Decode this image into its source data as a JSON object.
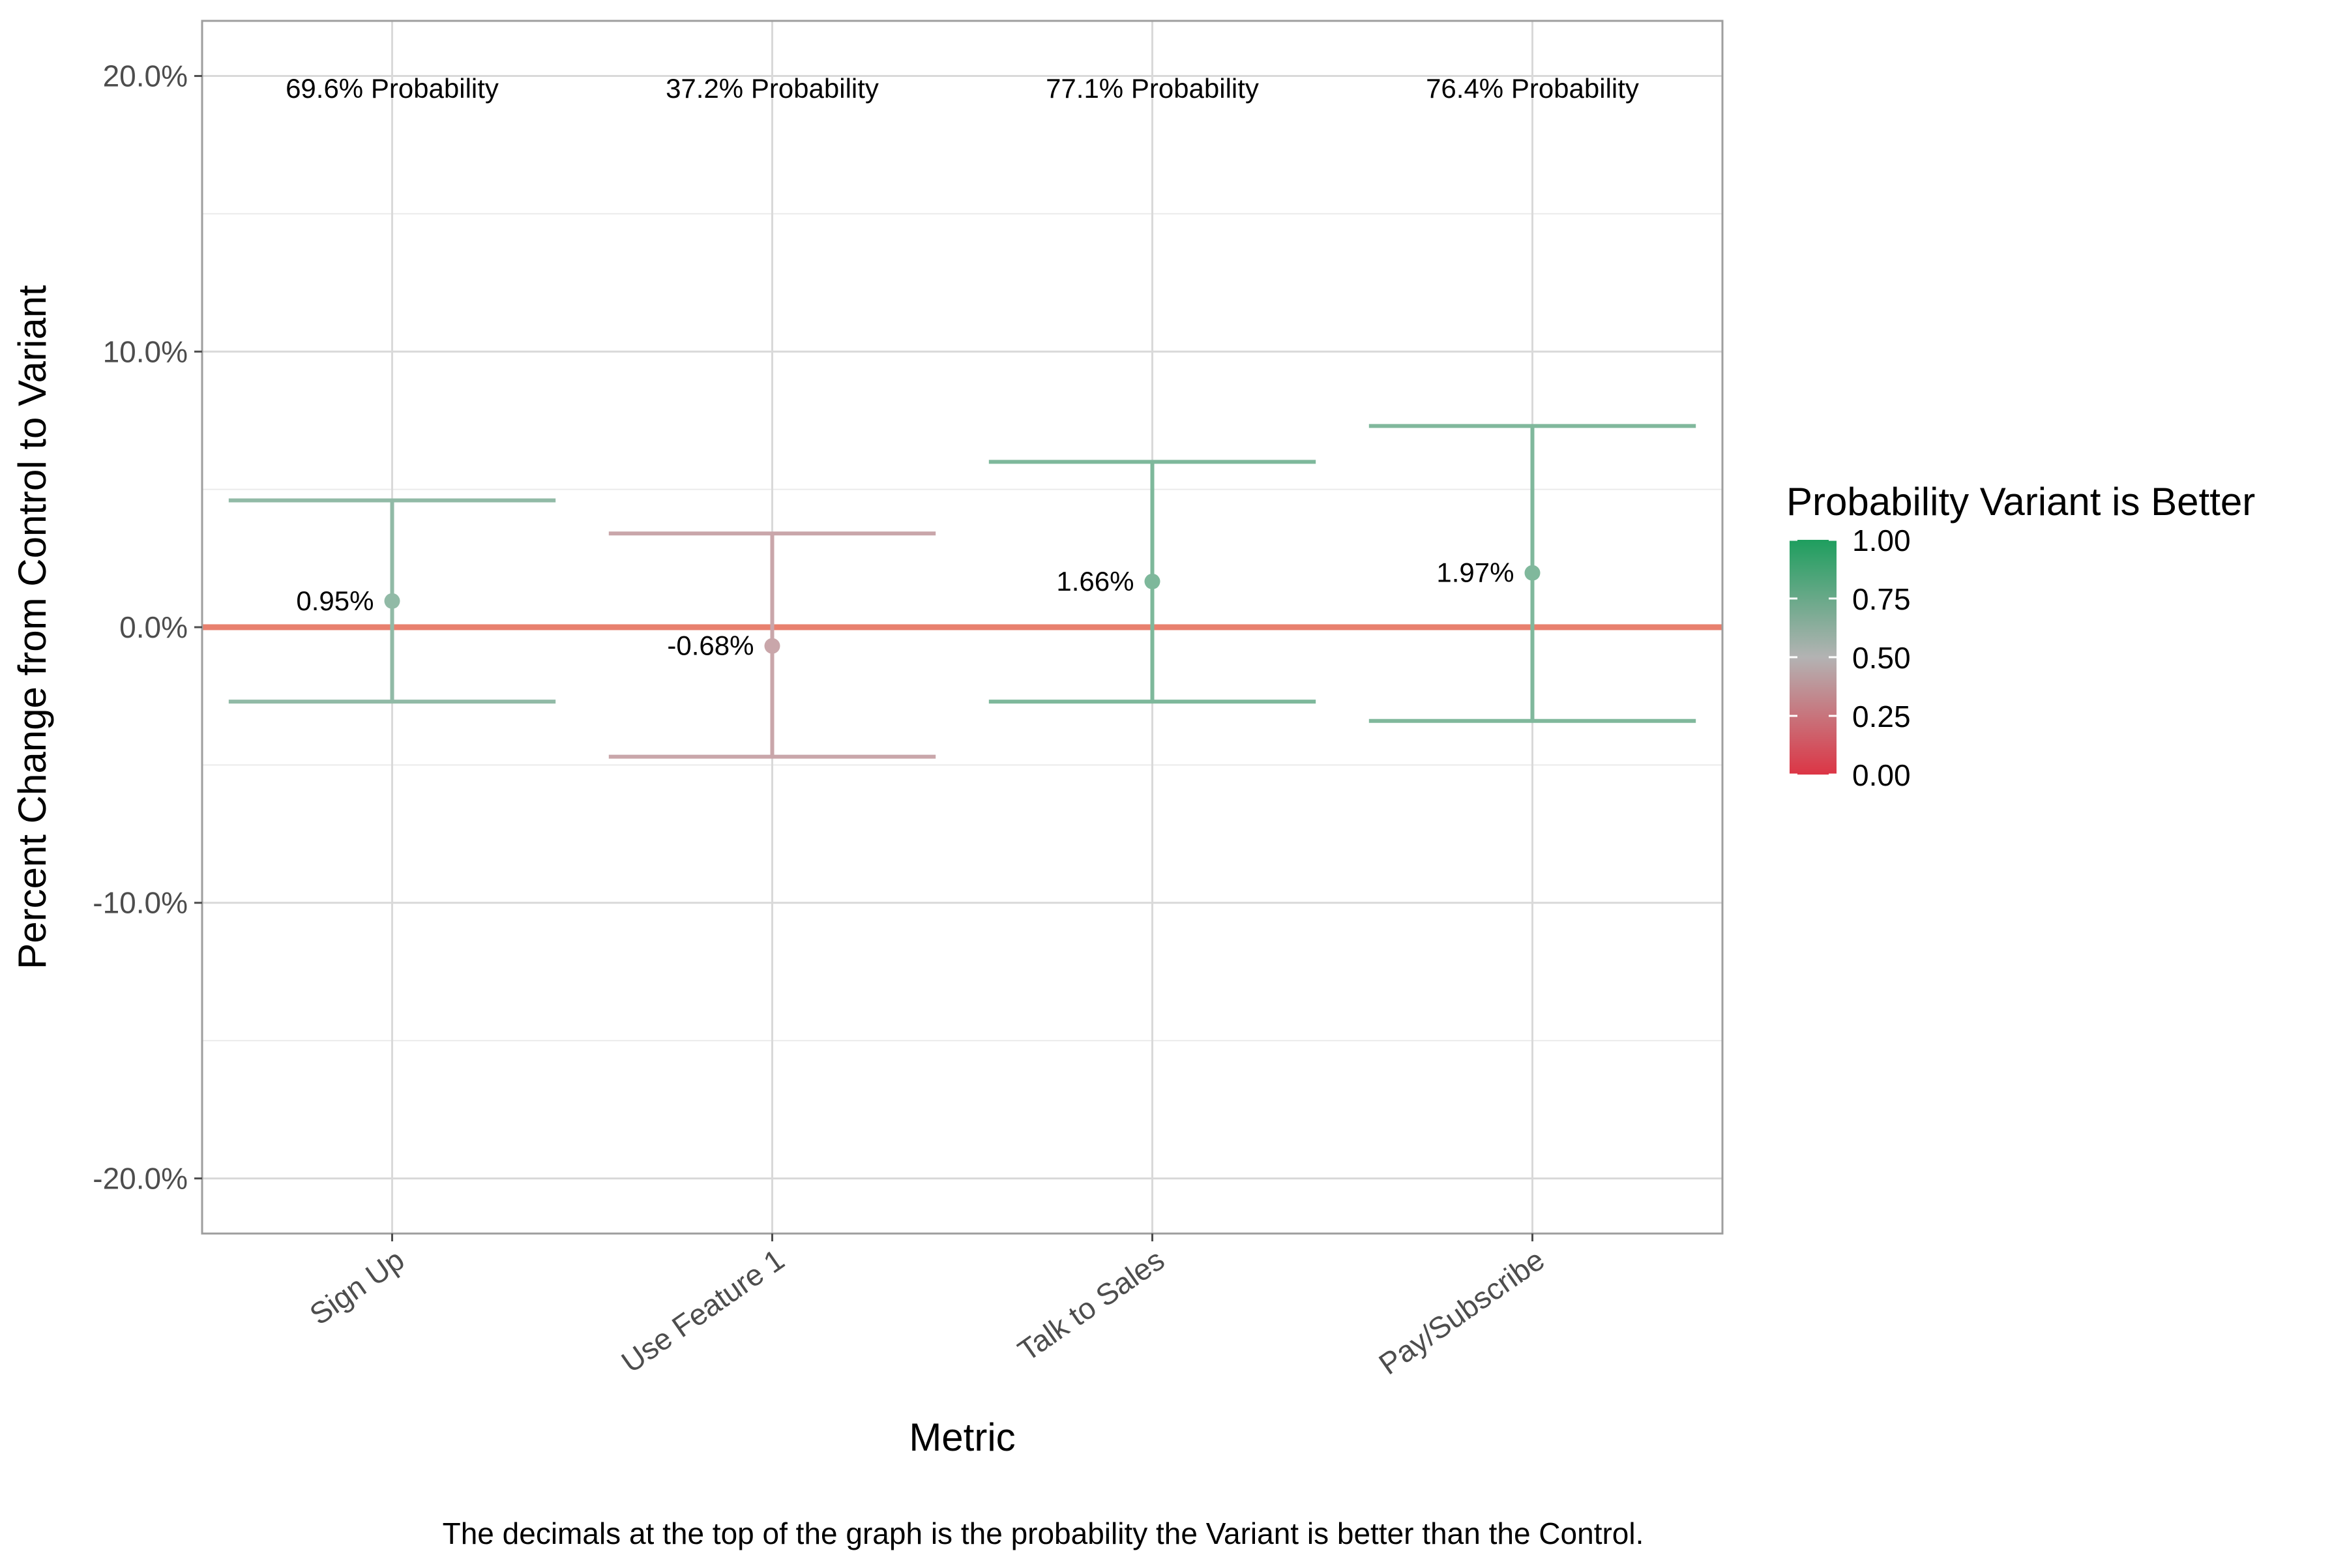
{
  "chart_data": {
    "type": "errorbar",
    "categories": [
      "Sign Up",
      "Use Feature 1",
      "Talk to Sales",
      "Pay/Subscribe"
    ],
    "series": [
      {
        "estimate": [
          0.95,
          -0.68,
          1.66,
          1.97
        ],
        "lower": [
          -2.7,
          -4.7,
          -2.7,
          -3.4
        ],
        "upper": [
          4.6,
          3.4,
          6.0,
          7.3
        ],
        "probability": [
          0.696,
          0.372,
          0.771,
          0.764
        ]
      }
    ],
    "point_labels": [
      "0.95%",
      "-0.68%",
      "1.66%",
      "1.97%"
    ],
    "probability_labels": [
      "69.6% Probability",
      "37.2% Probability",
      "77.1% Probability",
      "76.4% Probability"
    ],
    "xlabel": "Metric",
    "ylabel": "Percent Change from Control to Variant",
    "ylim": [
      -22,
      22
    ],
    "y_ticks": [
      -20,
      -10,
      0,
      10,
      20
    ],
    "y_tick_labels": [
      "-20.0%",
      "-10.0%",
      "0.0%",
      "10.0%",
      "20.0%"
    ],
    "reference_line": 0,
    "grid": true,
    "legend": {
      "title": "Probability Variant is Better",
      "position": "right",
      "values": [
        0,
        0.25,
        0.5,
        0.75,
        1.0
      ],
      "labels": [
        "0.00",
        "0.25",
        "0.50",
        "0.75",
        "1.00"
      ],
      "color_low": "#dc3545",
      "color_mid": "#b3b3b3",
      "color_high": "#1e9e5e"
    },
    "reference_line_color": "#e8806e",
    "caption": "The decimals at the top of the graph is the probability the Variant is better than the Control."
  }
}
